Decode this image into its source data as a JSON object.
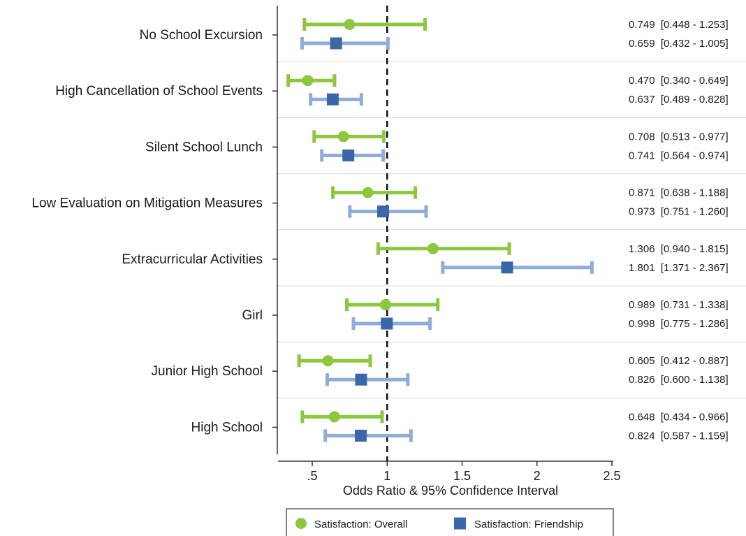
{
  "chart_data": {
    "type": "forest",
    "xlabel": "Odds Ratio & 95% Confidence Interval",
    "xlim": [
      0.2,
      2.5
    ],
    "xticks": [
      0.5,
      1,
      1.5,
      2,
      2.5
    ],
    "xtick_labels": [
      ".5",
      "1",
      "1.5",
      "2",
      "2.5"
    ],
    "reference_line": 1,
    "categories": [
      "No School Excursion",
      "High Cancellation of School Events",
      "Silent School Lunch",
      "Low Evaluation on Mitigation Measures",
      "Extracurricular Activities",
      "Girl",
      "Junior High School",
      "High School"
    ],
    "series": [
      {
        "name": "Satisfaction: Overall",
        "color": "#8dc63f",
        "ci_color": "#8dc63f",
        "marker": "circle",
        "estimates": [
          0.749,
          0.47,
          0.708,
          0.871,
          1.306,
          0.989,
          0.605,
          0.648
        ],
        "lower": [
          0.448,
          0.34,
          0.513,
          0.638,
          0.94,
          0.731,
          0.412,
          0.434
        ],
        "upper": [
          1.253,
          0.649,
          0.977,
          1.188,
          1.815,
          1.338,
          0.887,
          0.966
        ],
        "labels": [
          "0.749  [0.448 - 1.253]",
          "0.470  [0.340 - 0.649]",
          "0.708  [0.513 - 0.977]",
          "0.871  [0.638 - 1.188]",
          "1.306  [0.940 - 1.815]",
          "0.989  [0.731 - 1.338]",
          "0.605  [0.412 - 0.887]",
          "0.648  [0.434 - 0.966]"
        ]
      },
      {
        "name": "Satisfaction: Friendship",
        "color": "#3a67a8",
        "ci_color": "#90acd8",
        "marker": "square",
        "estimates": [
          0.659,
          0.637,
          0.741,
          0.973,
          1.801,
          0.998,
          0.826,
          0.824
        ],
        "lower": [
          0.432,
          0.489,
          0.564,
          0.751,
          1.371,
          0.775,
          0.6,
          0.587
        ],
        "upper": [
          1.005,
          0.828,
          0.974,
          1.26,
          2.367,
          1.286,
          1.138,
          1.159
        ],
        "labels": [
          "0.659  [0.432 - 1.005]",
          "0.637  [0.489 - 0.828]",
          "0.741  [0.564 - 0.974]",
          "0.973  [0.751 - 1.260]",
          "1.801  [1.371 - 2.367]",
          "0.998  [0.775 - 1.286]",
          "0.826  [0.600 - 1.138]",
          "0.824  [0.587 - 1.159]"
        ]
      }
    ],
    "legend": {
      "position": "bottom",
      "items": [
        "Satisfaction: Overall",
        "Satisfaction: Friendship"
      ]
    },
    "grid": "horizontal separators"
  }
}
